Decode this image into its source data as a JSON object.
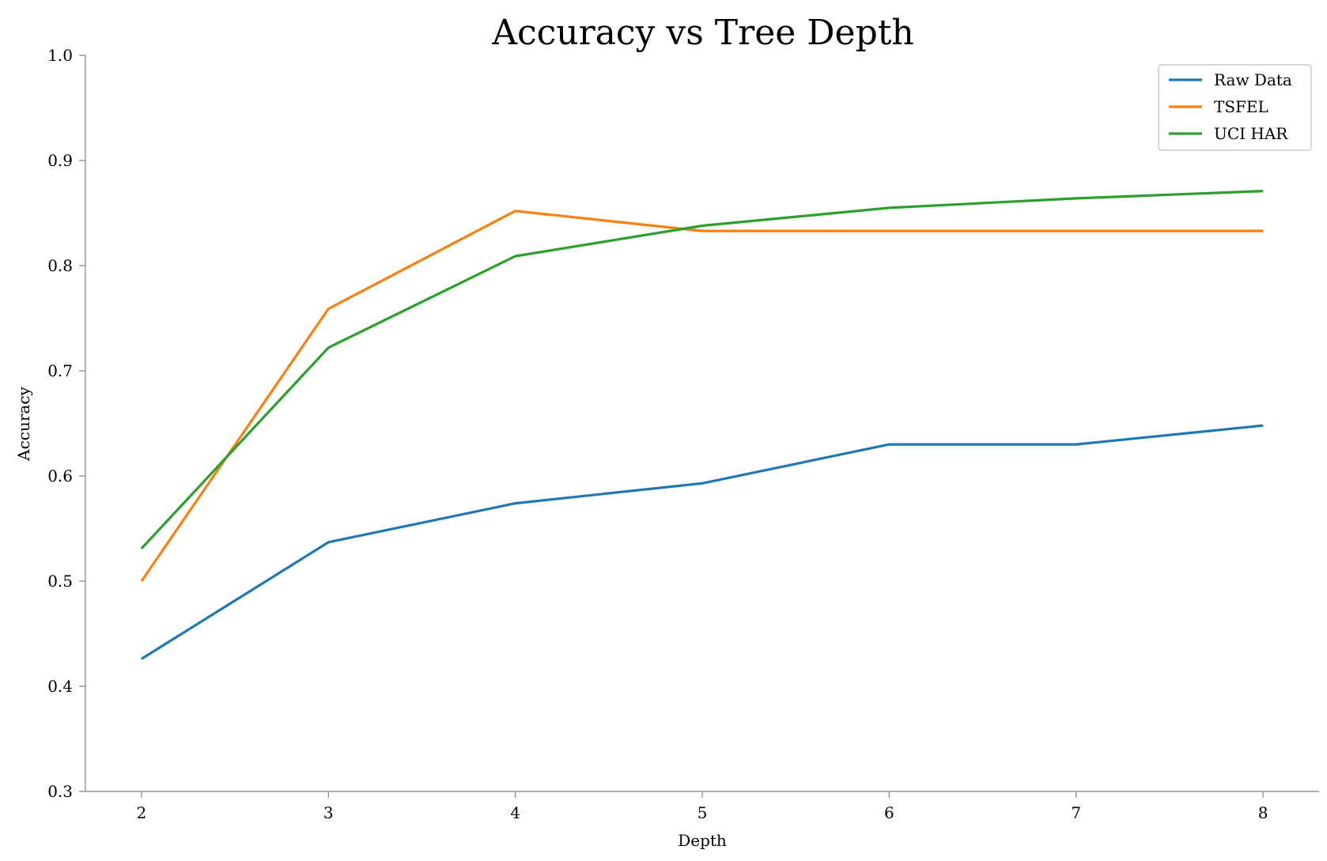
{
  "chart_data": {
    "type": "line",
    "title": "Accuracy vs Tree Depth",
    "xlabel": "Depth",
    "ylabel": "Accuracy",
    "x": [
      2,
      3,
      4,
      5,
      6,
      7,
      8
    ],
    "xlim": [
      1.7,
      8.3
    ],
    "ylim": [
      0.3,
      1.0
    ],
    "xticks": [
      "2",
      "3",
      "4",
      "5",
      "6",
      "7",
      "8"
    ],
    "yticks": [
      "0.3",
      "0.4",
      "0.5",
      "0.6",
      "0.7",
      "0.8",
      "0.9",
      "1.0"
    ],
    "grid": false,
    "legend_position": "top-right",
    "series": [
      {
        "name": "Raw Data",
        "color": "#1f77b4",
        "values": [
          0.426,
          0.537,
          0.574,
          0.593,
          0.63,
          0.63,
          0.648
        ]
      },
      {
        "name": "TSFEL",
        "color": "#ff7f0e",
        "values": [
          0.5,
          0.759,
          0.852,
          0.833,
          0.833,
          0.833,
          0.833
        ]
      },
      {
        "name": "UCI HAR",
        "color": "#2ca02c",
        "values": [
          0.531,
          0.722,
          0.809,
          0.838,
          0.855,
          0.864,
          0.871
        ]
      }
    ]
  }
}
